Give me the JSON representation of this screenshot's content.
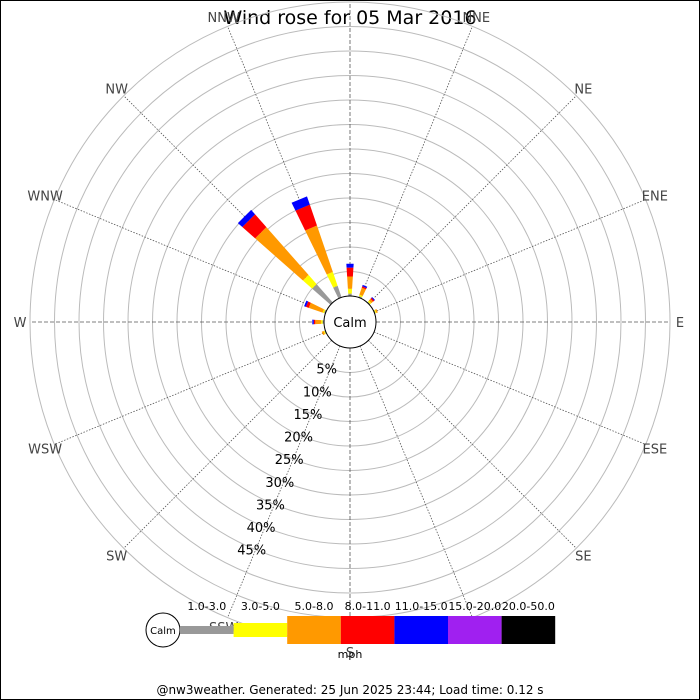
{
  "chart_data": {
    "type": "windrose",
    "title": "Wind rose for 05 Mar 2016",
    "center_label": "Calm",
    "directions": [
      "N",
      "NNE",
      "NE",
      "ENE",
      "E",
      "ESE",
      "SE",
      "SSE",
      "S",
      "SSW",
      "SW",
      "WSW",
      "W",
      "WNW",
      "NW",
      "NNW"
    ],
    "radial_ticks": [
      "5%",
      "10%",
      "15%",
      "20%",
      "25%",
      "30%",
      "35%",
      "40%",
      "45%"
    ],
    "radial_max": 45,
    "unit": "mph",
    "speed_bins": [
      {
        "label": "1.0-3.0",
        "color": "#999999"
      },
      {
        "label": "3.0-5.0",
        "color": "#ffff00"
      },
      {
        "label": "5.0-8.0",
        "color": "#ff9900"
      },
      {
        "label": "8.0-11.0",
        "color": "#ff0000"
      },
      {
        "label": "11.0-15.0",
        "color": "#0000ff"
      },
      {
        "label": "15.0-20.0",
        "color": "#a020f0"
      },
      {
        "label": "20.0-50.0",
        "color": "#000000"
      }
    ],
    "series": [
      {
        "direction": "N",
        "values": [
          0.5,
          1.0,
          2.5,
          1.8,
          0.8,
          0,
          0
        ]
      },
      {
        "direction": "NNE",
        "values": [
          0.3,
          0.3,
          1.5,
          0.3,
          0.3,
          0,
          0
        ]
      },
      {
        "direction": "NE",
        "values": [
          0.2,
          0.3,
          0.5,
          0.3,
          0.2,
          0,
          0
        ]
      },
      {
        "direction": "ENE",
        "values": [
          0.2,
          0.2,
          0.3,
          0,
          0,
          0,
          0
        ]
      },
      {
        "direction": "E",
        "values": [
          0,
          0,
          0,
          0,
          0,
          0,
          0
        ]
      },
      {
        "direction": "ESE",
        "values": [
          0,
          0,
          0,
          0,
          0,
          0,
          0
        ]
      },
      {
        "direction": "SE",
        "values": [
          0,
          0,
          0,
          0,
          0,
          0,
          0
        ]
      },
      {
        "direction": "SSE",
        "values": [
          0,
          0,
          0,
          0,
          0,
          0,
          0
        ]
      },
      {
        "direction": "S",
        "values": [
          0,
          0,
          0,
          0,
          0,
          0,
          0
        ]
      },
      {
        "direction": "SSW",
        "values": [
          0,
          0,
          0,
          0,
          0,
          0,
          0
        ]
      },
      {
        "direction": "SW",
        "values": [
          0,
          0,
          0,
          0,
          0,
          0,
          0
        ]
      },
      {
        "direction": "WSW",
        "values": [
          0.2,
          0.2,
          0.4,
          0,
          0,
          0,
          0
        ]
      },
      {
        "direction": "W",
        "values": [
          0.3,
          0.3,
          1.2,
          0.3,
          0.3,
          0,
          0
        ]
      },
      {
        "direction": "WNW",
        "values": [
          0.3,
          0.3,
          3.0,
          0.6,
          0.4,
          0,
          0
        ]
      },
      {
        "direction": "NW",
        "values": [
          5.0,
          2.5,
          13.0,
          3.5,
          1.2,
          0,
          0
        ]
      },
      {
        "direction": "NNW",
        "values": [
          2.5,
          3.0,
          10.0,
          4.5,
          1.8,
          0,
          0
        ]
      }
    ]
  },
  "footer": "@nw3weather. Generated: 25 Jun 2025 23:44; Load time: 0.12 s"
}
